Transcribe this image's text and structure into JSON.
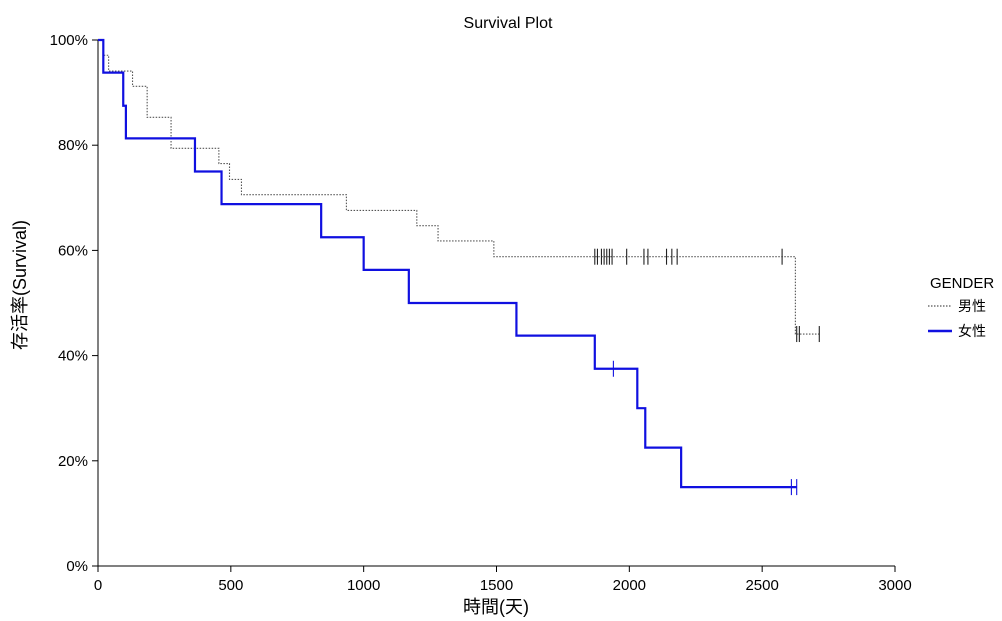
{
  "chart_data": {
    "type": "line",
    "step": true,
    "title": "Survival Plot",
    "xlabel": "時間(天)",
    "ylabel": "存活率(Survival)",
    "xlim": [
      0,
      3000
    ],
    "ylim": [
      0,
      1
    ],
    "x_ticks": [
      0,
      500,
      1000,
      1500,
      2000,
      2500,
      3000
    ],
    "x_tick_labels": [
      "0",
      "500",
      "1000",
      "1500",
      "2000",
      "2500",
      "3000"
    ],
    "y_ticks": [
      0,
      0.2,
      0.4,
      0.6,
      0.8,
      1.0
    ],
    "y_tick_labels": [
      "0%",
      "20%",
      "40%",
      "60%",
      "80%",
      "100%"
    ],
    "grid": false,
    "legend": {
      "title": "GENDER",
      "position": "right"
    },
    "series": [
      {
        "name": "男性",
        "style": "dotted",
        "color": "#555555",
        "steps": [
          [
            0,
            1.0
          ],
          [
            20,
            0.971
          ],
          [
            40,
            0.941
          ],
          [
            130,
            0.912
          ],
          [
            185,
            0.853
          ],
          [
            275,
            0.794
          ],
          [
            455,
            0.765
          ],
          [
            495,
            0.735
          ],
          [
            540,
            0.706
          ],
          [
            935,
            0.676
          ],
          [
            1200,
            0.647
          ],
          [
            1280,
            0.618
          ],
          [
            1490,
            0.588
          ],
          [
            2625,
            0.441
          ],
          [
            2715,
            0.441
          ]
        ],
        "censored": [
          1870,
          1880,
          1895,
          1905,
          1915,
          1925,
          1935,
          1990,
          2055,
          2070,
          2140,
          2160,
          2180,
          2575,
          2630,
          2640,
          2715
        ]
      },
      {
        "name": "女性",
        "style": "solid",
        "color": "#1010e0",
        "steps": [
          [
            0,
            1.0
          ],
          [
            20,
            0.938
          ],
          [
            95,
            0.875
          ],
          [
            105,
            0.813
          ],
          [
            365,
            0.75
          ],
          [
            465,
            0.688
          ],
          [
            840,
            0.625
          ],
          [
            1000,
            0.563
          ],
          [
            1170,
            0.5
          ],
          [
            1575,
            0.438
          ],
          [
            1870,
            0.375
          ],
          [
            2030,
            0.3
          ],
          [
            2060,
            0.225
          ],
          [
            2195,
            0.15
          ],
          [
            2630,
            0.15
          ]
        ],
        "censored": [
          1940,
          2610,
          2630
        ]
      }
    ]
  }
}
